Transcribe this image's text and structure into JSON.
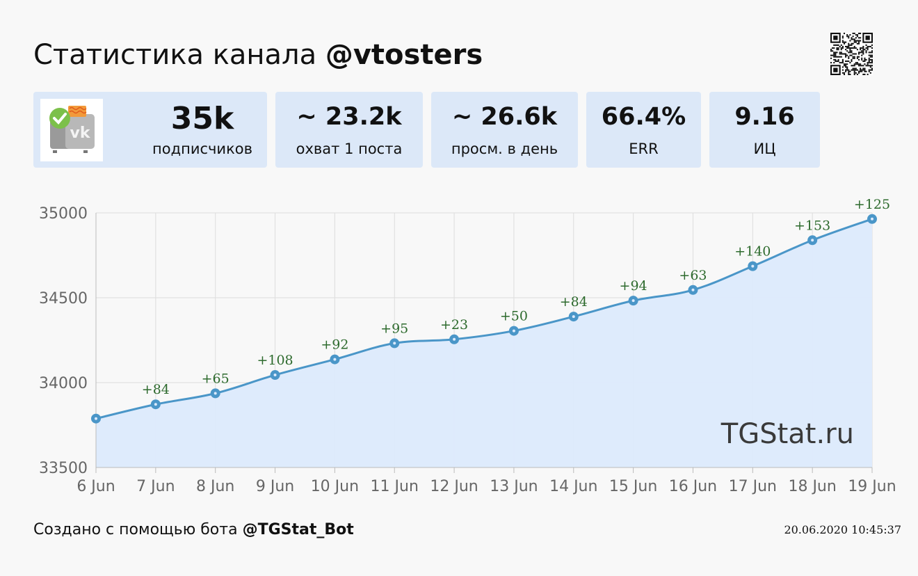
{
  "header": {
    "title_prefix": "Статистика канала",
    "channel": "@vtosters"
  },
  "qr_icon": "qr-code-icon",
  "stats": [
    {
      "value": "35k",
      "label": "подписчиков"
    },
    {
      "value": "~ 23.2k",
      "label": "охват 1 поста"
    },
    {
      "value": "~ 26.6k",
      "label": "просм. в день"
    },
    {
      "value": "66.4%",
      "label": "ERR"
    },
    {
      "value": "9.16",
      "label": "ИЦ"
    }
  ],
  "avatar_icon": "vk-channel-logo",
  "colors": {
    "card_bg": "#dce8f8",
    "line": "#4a96c8",
    "area": "#dceafc",
    "point": "#4a96c8",
    "label": "#2d6a2d"
  },
  "chart_data": {
    "type": "area",
    "x": [
      "6 Jun",
      "7 Jun",
      "8 Jun",
      "9 Jun",
      "10 Jun",
      "11 Jun",
      "12 Jun",
      "13 Jun",
      "14 Jun",
      "15 Jun",
      "16 Jun",
      "17 Jun",
      "18 Jun",
      "19 Jun"
    ],
    "series": [
      {
        "values": [
          33788,
          33872,
          33937,
          34045,
          34137,
          34232,
          34255,
          34305,
          34389,
          34483,
          34546,
          34686,
          34839,
          34964
        ],
        "labels": [
          "",
          "+84",
          "+65",
          "+108",
          "+92",
          "+95",
          "+23",
          "+50",
          "+84",
          "+94",
          "+63",
          "+140",
          "+153",
          "+125"
        ]
      }
    ],
    "yticks": [
      33500,
      34000,
      34500,
      35000
    ],
    "ylim": [
      33500,
      35000
    ],
    "grid": true,
    "watermark": "TGStat.ru"
  },
  "footer": {
    "prefix": "Создано с помощью бота",
    "bot": "@TGStat_Bot",
    "timestamp": "20.06.2020 10:45:37"
  }
}
